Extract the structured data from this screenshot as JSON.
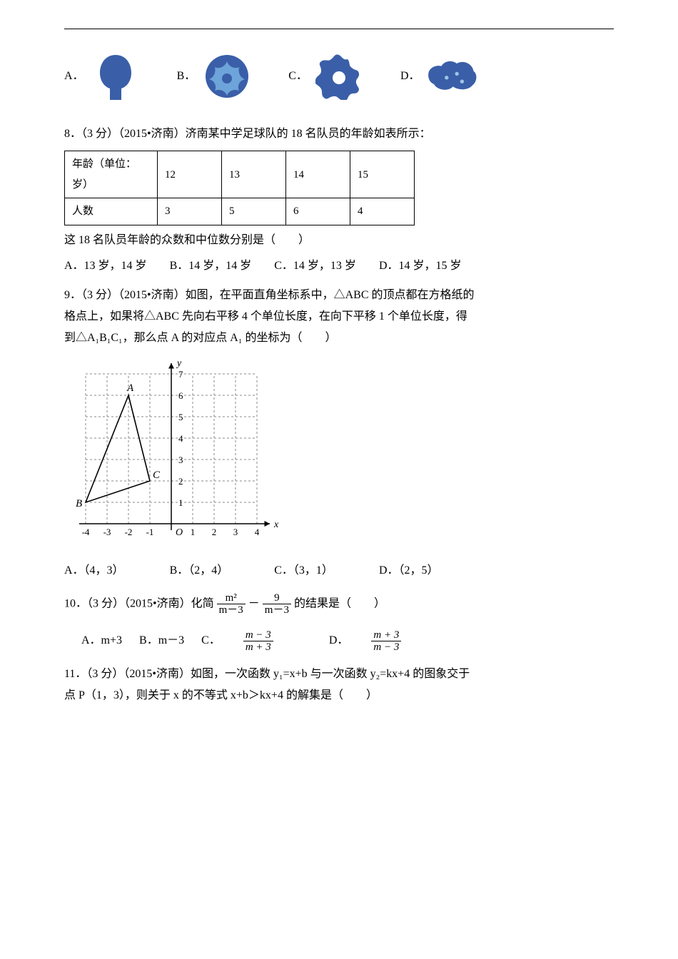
{
  "q7": {
    "optA": "A．",
    "optB": "B．",
    "optC": "C．",
    "optD": "D．",
    "colorA": "#3a5fa8",
    "colorB": "#3a5fa8",
    "colorC": "#3a5fa8",
    "colorD": "#3a5fa8"
  },
  "q8": {
    "title": "8．（3 分）（2015•济南）济南某中学足球队的 18 名队员的年龄如表所示：",
    "tbl": {
      "h1": "年龄（单位：岁）",
      "h2": "12",
      "h3": "13",
      "h4": "14",
      "h5": "15",
      "r1": "人数",
      "r2": "3",
      "r3": "5",
      "r4": "6",
      "r5": "4"
    },
    "line2": "这 18 名队员年龄的众数和中位数分别是（　　）",
    "optA": "A．13 岁，14 岁",
    "optB": "B．14 岁，14 岁",
    "optC": "C．14 岁，13 岁",
    "optD": "D．14 岁，15 岁"
  },
  "q9": {
    "line1": "9．（3 分）（2015•济南）如图，在平面直角坐标系中，△ABC 的顶点都在方格纸的",
    "line2": "格点上，如果将△ABC 先向右平移 4 个单位长度，在向下平移 1 个单位长度，得",
    "line3": "到△A₁B₁C₁，那么点 A 的对应点 A₁ 的坐标为（　　）",
    "optA": "A．（4，3）",
    "optB": "B．（2，4）",
    "optC": "C．（3，1）",
    "optD": "D．（2，5）",
    "grid": {
      "xlabels": [
        "-4",
        "-3",
        "-2",
        "-1",
        "1",
        "2",
        "3",
        "4"
      ],
      "ylabels": [
        "1",
        "2",
        "3",
        "4",
        "5",
        "6",
        "7"
      ],
      "xlabel_char": "x",
      "ylabel_char": "y",
      "O": "O",
      "A_label": "A",
      "B_label": "B",
      "C_label": "C",
      "A": [
        -2,
        6
      ],
      "B": [
        -4,
        1
      ],
      "C": [
        -1,
        2
      ],
      "grid_color": "#888",
      "axis_color": "#000"
    }
  },
  "q10": {
    "prefix": "10．（3 分）（2015•济南）化简",
    "f1_num": "m²",
    "f1_den": "m－3",
    "minus": "－",
    "f2_num": "9",
    "f2_den": "m－3",
    "suffix": "的结果是（　　）",
    "optA": "A．m+3",
    "optB": "B．m－3",
    "optC_label": "C．",
    "optC_num": "m − 3",
    "optC_den": "m + 3",
    "optD_label": "D．",
    "optD_num": "m + 3",
    "optD_den": "m − 3"
  },
  "q11": {
    "line1": "11．（3 分）（2015•济南）如图，一次函数 y₁=x+b 与一次函数 y₂=kx+4 的图象交于",
    "line2": "点 P（1，3），则关于 x 的不等式 x+b＞kx+4 的解集是（　　）"
  }
}
